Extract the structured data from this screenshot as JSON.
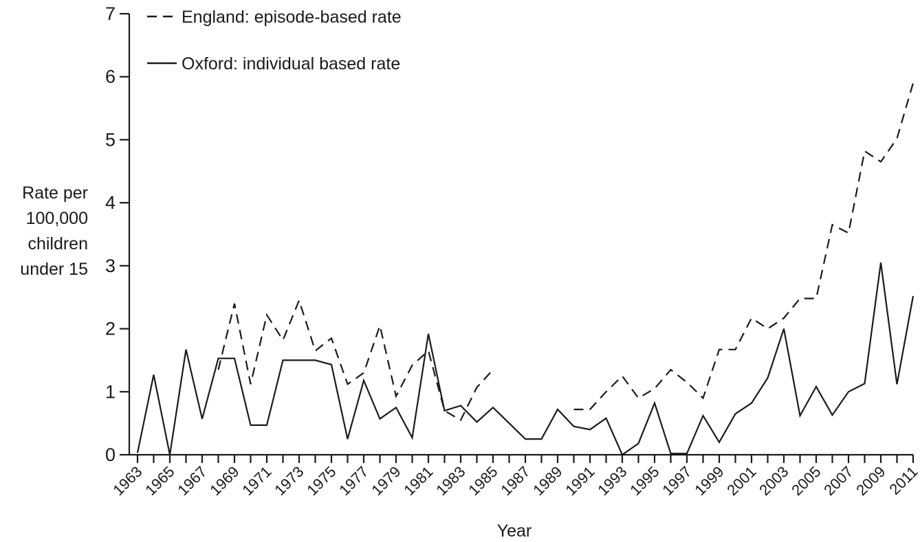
{
  "chart_data": {
    "type": "line",
    "title": "",
    "xlabel": "Year",
    "ylabel_lines": [
      "Rate per",
      "100,000",
      "children",
      "under 15"
    ],
    "xlim": [
      1963,
      2011
    ],
    "ylim": [
      0,
      7
    ],
    "yticks": [
      0,
      1,
      2,
      3,
      4,
      5,
      6,
      7
    ],
    "xticks": [
      1963,
      1965,
      1967,
      1969,
      1971,
      1973,
      1975,
      1977,
      1979,
      1981,
      1983,
      1985,
      1987,
      1989,
      1991,
      1993,
      1995,
      1997,
      1999,
      2001,
      2003,
      2005,
      2007,
      2009,
      2011
    ],
    "grid": false,
    "legend_position": "top-left",
    "series": [
      {
        "name": "England: episode-based rate",
        "style": "dashed",
        "color": "#1a1a1a",
        "segments": [
          {
            "x": [
              1968,
              1969,
              1970,
              1971,
              1972,
              1973,
              1974,
              1975,
              1976,
              1977,
              1978,
              1979,
              1980,
              1981,
              1982,
              1983,
              1984,
              1985
            ],
            "y": [
              1.35,
              2.4,
              1.12,
              2.22,
              1.82,
              2.45,
              1.65,
              1.85,
              1.12,
              1.3,
              2.05,
              0.93,
              1.42,
              1.65,
              0.7,
              0.55,
              1.07,
              1.35
            ]
          },
          {
            "x": [
              1990,
              1991,
              1992,
              1993,
              1994,
              1995,
              1996,
              1997,
              1998,
              1999,
              2000,
              2001,
              2002,
              2003,
              2004,
              2005,
              2006,
              2007,
              2008,
              2009,
              2010,
              2011
            ],
            "y": [
              0.72,
              0.72,
              1.0,
              1.25,
              0.9,
              1.05,
              1.35,
              1.15,
              0.9,
              1.67,
              1.67,
              2.17,
              2.0,
              2.17,
              2.48,
              2.48,
              3.65,
              3.52,
              4.82,
              4.65,
              5.02,
              5.9
            ]
          }
        ]
      },
      {
        "name": "Oxford: individual based rate",
        "style": "solid",
        "color": "#1a1a1a",
        "segments": [
          {
            "x": [
              1963,
              1964,
              1965,
              1966,
              1967,
              1968,
              1969,
              1970,
              1971,
              1972,
              1973,
              1974,
              1975,
              1976,
              1977,
              1978,
              1979,
              1980,
              1981,
              1982,
              1983,
              1984,
              1985,
              1986,
              1987,
              1988,
              1989,
              1990,
              1991,
              1992,
              1993,
              1994,
              1995,
              1996,
              1997,
              1998,
              1999,
              2000,
              2001,
              2002,
              2003,
              2004,
              2005,
              2006,
              2007,
              2008,
              2009,
              2010,
              2011
            ],
            "y": [
              0.03,
              1.27,
              0.0,
              1.67,
              0.57,
              1.53,
              1.53,
              0.47,
              0.47,
              1.5,
              1.5,
              1.5,
              1.43,
              0.25,
              1.18,
              0.57,
              0.75,
              0.27,
              1.92,
              0.7,
              0.78,
              0.52,
              0.75,
              0.5,
              0.25,
              0.25,
              0.72,
              0.45,
              0.4,
              0.58,
              0.0,
              0.18,
              0.82,
              0.02,
              0.02,
              0.62,
              0.2,
              0.65,
              0.82,
              1.22,
              2.0,
              0.62,
              1.08,
              0.63,
              1.0,
              1.13,
              3.05,
              1.12,
              2.52
            ]
          }
        ]
      }
    ]
  }
}
